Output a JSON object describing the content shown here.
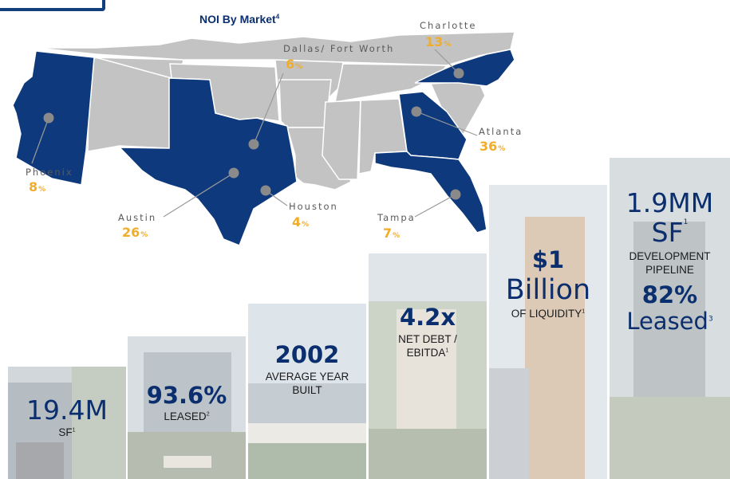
{
  "map": {
    "title": "NOI By Market",
    "title_sup": "4",
    "markets": [
      {
        "id": "phoenix",
        "name": "Phoenix",
        "value": "8",
        "unit": "%"
      },
      {
        "id": "austin",
        "name": "Austin",
        "value": "26",
        "unit": "%"
      },
      {
        "id": "dallas",
        "name": "Dallas/ Fort Worth",
        "value": "6",
        "unit": "%"
      },
      {
        "id": "houston",
        "name": "Houston",
        "value": "4",
        "unit": "%"
      },
      {
        "id": "charlotte",
        "name": "Charlotte",
        "value": "13",
        "unit": "%"
      },
      {
        "id": "atlanta",
        "name": "Atlanta",
        "value": "36",
        "unit": "%"
      },
      {
        "id": "tampa",
        "name": "Tampa",
        "value": "7",
        "unit": "%"
      }
    ],
    "colors": {
      "highlight": "#0e3a7d",
      "other": "#c3c3c3",
      "value": "#f1ad2a",
      "dot": "#8a8a8a"
    }
  },
  "stats": [
    {
      "id": "sf",
      "big": "19.4M",
      "lines": [
        "SF"
      ],
      "sup": "1"
    },
    {
      "id": "leased",
      "big": "93.6%",
      "lines": [
        "LEASED"
      ],
      "sup": "2"
    },
    {
      "id": "year",
      "big": "2002",
      "lines": [
        "AVERAGE YEAR",
        "BUILT"
      ],
      "sup": ""
    },
    {
      "id": "debt",
      "big": "4.2x",
      "lines": [
        "NET DEBT /",
        "EBITDA"
      ],
      "sup": "1"
    },
    {
      "id": "liquidity",
      "big1": "$1",
      "big2": "Billion",
      "lines": [
        "OF LIQUIDITY"
      ],
      "sup": "1"
    },
    {
      "id": "pipeline",
      "big1": "1.9MM",
      "big2": "SF",
      "sup_big": "1",
      "lines": [
        "DEVELOPMENT",
        "PIPELINE"
      ],
      "big3": "82%",
      "big4": "Leased",
      "sup4": "3"
    }
  ]
}
